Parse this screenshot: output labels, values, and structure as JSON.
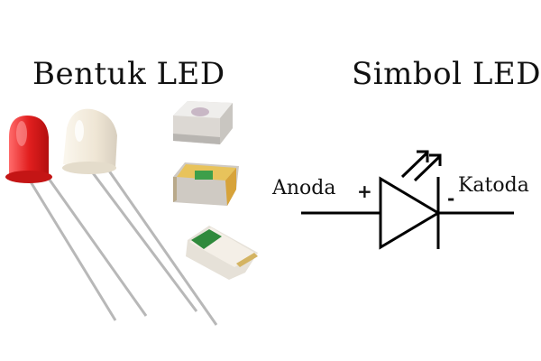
{
  "left_title": "Bentuk LED",
  "right_title": "Simbol LED",
  "symbol": {
    "anode_label": "Anoda",
    "cathode_label": "Katoda",
    "plus": "+",
    "minus": "-"
  },
  "components": [
    {
      "name": "red-5mm-led-icon",
      "color": "#e21f1f"
    },
    {
      "name": "white-5mm-led-icon",
      "color": "#efe6d5"
    },
    {
      "name": "smd-led-white-icon",
      "color": "#d9d6d2"
    },
    {
      "name": "smd-led-yellow-icon",
      "color": "#d9b24a"
    },
    {
      "name": "smd-led-green-icon",
      "color": "#2e7d3a"
    }
  ]
}
